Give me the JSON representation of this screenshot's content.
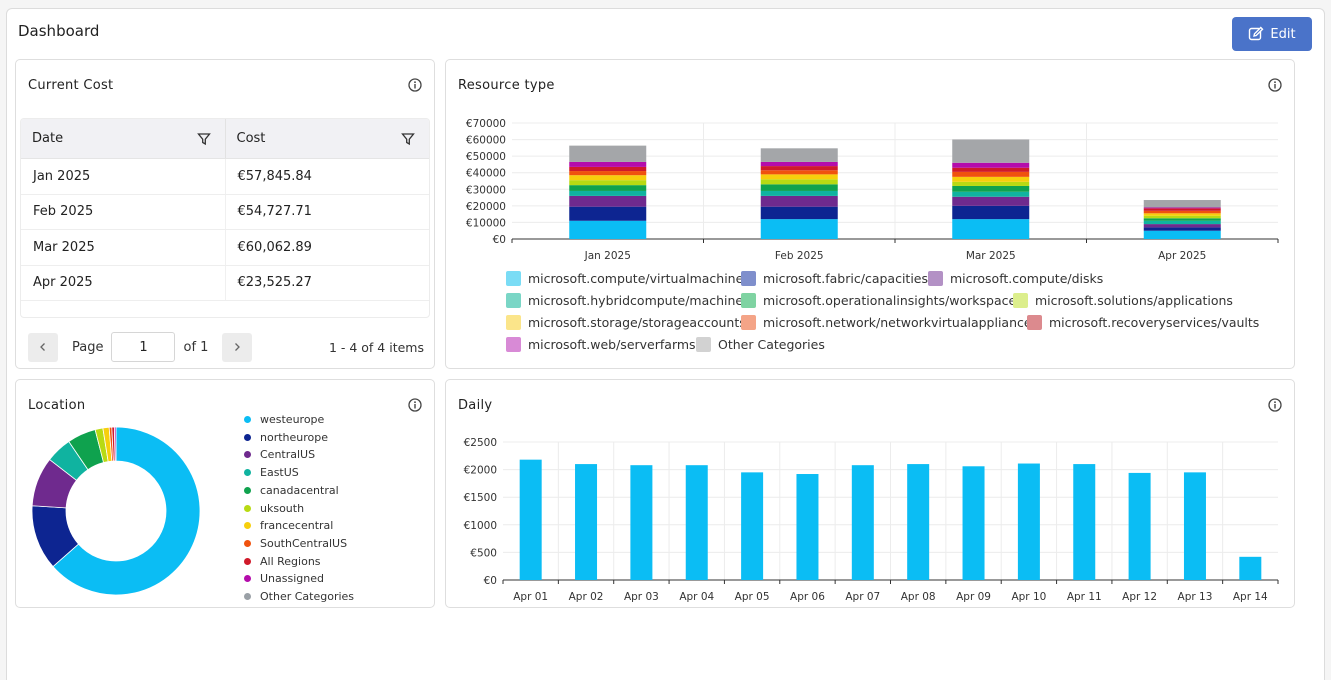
{
  "page": {
    "title": "Dashboard",
    "edit_label": "Edit"
  },
  "colors": {
    "accent": "#4a73c9",
    "bar_primary": "#0bbdf4"
  },
  "current_cost": {
    "title": "Current Cost",
    "columns": [
      "Date",
      "Cost"
    ],
    "rows": [
      [
        "Jan 2025",
        "€57,845.84"
      ],
      [
        "Feb 2025",
        "€54,727.71"
      ],
      [
        "Mar 2025",
        "€60,062.89"
      ],
      [
        "Apr 2025",
        "€23,525.27"
      ]
    ],
    "pager": {
      "page_label": "Page",
      "page_value": "1",
      "of_label": "of 1",
      "range": "1 - 4 of 4 items"
    }
  },
  "resource_type": {
    "title": "Resource type",
    "legend": [
      {
        "name": "microsoft.compute/virtualmachines",
        "color": "#7adcf5"
      },
      {
        "name": "microsoft.fabric/capacities",
        "color": "#7f8fcc"
      },
      {
        "name": "microsoft.compute/disks",
        "color": "#b391c5"
      },
      {
        "name": "microsoft.hybridcompute/machines",
        "color": "#7ad6c6"
      },
      {
        "name": "microsoft.operationalinsights/workspaces",
        "color": "#7fd3a2"
      },
      {
        "name": "microsoft.solutions/applications",
        "color": "#dcee8c"
      },
      {
        "name": "microsoft.storage/storageaccounts",
        "color": "#fbe58a"
      },
      {
        "name": "microsoft.network/networkvirtualappliances",
        "color": "#f4a487"
      },
      {
        "name": "microsoft.recoveryservices/vaults",
        "color": "#dc8a8e"
      },
      {
        "name": "microsoft.web/serverfarms",
        "color": "#d88ad6"
      },
      {
        "name": "Other Categories",
        "color": "#d2d2d2"
      }
    ]
  },
  "location": {
    "title": "Location",
    "legend": [
      {
        "name": "westeurope",
        "color": "#0bbdf4"
      },
      {
        "name": "northeurope",
        "color": "#0d2591"
      },
      {
        "name": "CentralUS",
        "color": "#6f2a8e"
      },
      {
        "name": "EastUS",
        "color": "#10b3a0"
      },
      {
        "name": "canadacentral",
        "color": "#0fa24e"
      },
      {
        "name": "uksouth",
        "color": "#b8da13"
      },
      {
        "name": "francecentral",
        "color": "#f7cf0c"
      },
      {
        "name": "SouthCentralUS",
        "color": "#f0520e"
      },
      {
        "name": "All Regions",
        "color": "#d01a2a"
      },
      {
        "name": "Unassigned",
        "color": "#b40cab"
      },
      {
        "name": "Other Categories",
        "color": "#9aa0a6"
      }
    ]
  },
  "daily": {
    "title": "Daily"
  },
  "chart_data": [
    {
      "type": "bar",
      "stacked": true,
      "title": "Resource type",
      "categories": [
        "Jan 2025",
        "Feb 2025",
        "Mar 2025",
        "Apr 2025"
      ],
      "ylim": [
        0,
        70000
      ],
      "yticks": [
        "€0",
        "€10000",
        "€20000",
        "€30000",
        "€40000",
        "€50000",
        "€60000",
        "€70000"
      ],
      "ytick_values": [
        0,
        10000,
        20000,
        30000,
        40000,
        50000,
        60000,
        70000
      ],
      "grid": true,
      "series": [
        {
          "name": "microsoft.compute/virtualmachines",
          "color": "#0bbdf4",
          "values": [
            11000,
            12000,
            12000,
            5000
          ]
        },
        {
          "name": "microsoft.fabric/capacities",
          "color": "#0d2591",
          "values": [
            8500,
            7500,
            8000,
            2000
          ]
        },
        {
          "name": "microsoft.compute/disks",
          "color": "#6f2a8e",
          "values": [
            6500,
            6500,
            5500,
            2000
          ]
        },
        {
          "name": "microsoft.hybridcompute/machines",
          "color": "#10b3a0",
          "values": [
            3000,
            3000,
            3000,
            2000
          ]
        },
        {
          "name": "microsoft.operationalinsights/workspaces",
          "color": "#0fa24e",
          "values": [
            3500,
            4000,
            3500,
            1500
          ]
        },
        {
          "name": "microsoft.solutions/applications",
          "color": "#b8da13",
          "values": [
            3000,
            3000,
            2500,
            1500
          ]
        },
        {
          "name": "microsoft.storage/storageaccounts",
          "color": "#f7cf0c",
          "values": [
            3000,
            3000,
            3000,
            1500
          ]
        },
        {
          "name": "microsoft.network/networkvirtualappliances",
          "color": "#f0520e",
          "values": [
            2500,
            2500,
            3000,
            1500
          ]
        },
        {
          "name": "microsoft.recoveryservices/vaults",
          "color": "#d01a2a",
          "values": [
            2500,
            2500,
            2500,
            1500
          ]
        },
        {
          "name": "microsoft.web/serverfarms",
          "color": "#b40cab",
          "values": [
            3000,
            2500,
            3000,
            500
          ]
        },
        {
          "name": "Other Categories",
          "color": "#a4a6a9",
          "values": [
            9845.84,
            8227.71,
            14062.89,
            4525.27
          ]
        }
      ]
    },
    {
      "type": "pie",
      "donut": true,
      "title": "Location",
      "labels": [
        "westeurope",
        "northeurope",
        "CentralUS",
        "EastUS",
        "canadacentral",
        "uksouth",
        "francecentral",
        "SouthCentralUS",
        "All Regions",
        "Unassigned",
        "Other Categories"
      ],
      "values": [
        63.5,
        12.5,
        9.5,
        5.0,
        5.5,
        1.5,
        1.2,
        0.5,
        0.5,
        0.3,
        0.0
      ],
      "colors": [
        "#0bbdf4",
        "#0d2591",
        "#6f2a8e",
        "#10b3a0",
        "#0fa24e",
        "#b8da13",
        "#f7cf0c",
        "#f0520e",
        "#d01a2a",
        "#b40cab",
        "#9aa0a6"
      ]
    },
    {
      "type": "bar",
      "title": "Daily",
      "categories": [
        "Apr 01",
        "Apr 02",
        "Apr 03",
        "Apr 04",
        "Apr 05",
        "Apr 06",
        "Apr 07",
        "Apr 08",
        "Apr 09",
        "Apr 10",
        "Apr 11",
        "Apr 12",
        "Apr 13",
        "Apr 14"
      ],
      "values": [
        2180,
        2100,
        2080,
        2080,
        1950,
        1920,
        2080,
        2100,
        2060,
        2110,
        2100,
        1940,
        1950,
        420
      ],
      "ylim": [
        0,
        2500
      ],
      "yticks": [
        "€0",
        "€500",
        "€1000",
        "€1500",
        "€2000",
        "€2500"
      ],
      "ytick_values": [
        0,
        500,
        1000,
        1500,
        2000,
        2500
      ],
      "color": "#0bbdf4",
      "grid": true
    }
  ]
}
